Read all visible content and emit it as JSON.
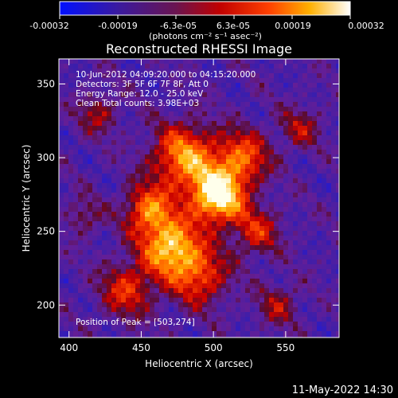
{
  "colorbar": {
    "tick_labels": [
      "-0.00032",
      "-0.00019",
      "-6.3e-05",
      "6.3e-05",
      "0.00019",
      "0.00032"
    ],
    "units_label": "(photons cm⁻² s⁻¹ asec⁻²)"
  },
  "plot": {
    "title": "Reconstructed RHESSI Image",
    "info_lines": [
      "10-Jun-2012 04:09:20.000 to 04:15:20.000",
      "Detectors: 3F 5F 6F 7F 8F, Att 0",
      "Energy Range: 12.0 - 25.0 keV",
      "Clean      Total counts: 3.98E+03"
    ],
    "peak_label": "Position of Peak = [503,274]"
  },
  "footer": {
    "date": "11-May-2022 14:30"
  },
  "chart_data": {
    "type": "heatmap",
    "title": "Reconstructed RHESSI Image",
    "xlabel": "Heliocentric X (arcsec)",
    "ylabel": "Heliocentric Y (arcsec)",
    "xlim": [
      393,
      587
    ],
    "ylim": [
      178,
      367
    ],
    "x_ticks": [
      400,
      450,
      500,
      550
    ],
    "y_ticks": [
      200,
      250,
      300,
      350
    ],
    "colorbar_range": [
      -0.00032,
      0.00032
    ],
    "colormap": [
      "#0000ff",
      "#4b0082",
      "#800000",
      "#ff3000",
      "#ffb000",
      "#ffffff"
    ],
    "peak_position": [
      503,
      274
    ],
    "time_range": "10-Jun-2012 04:09:20.000 to 04:15:20.000",
    "detectors": "3F 5F 6F 7F 8F",
    "energy_range_keV": [
      12.0,
      25.0
    ],
    "total_counts": 3980
  }
}
